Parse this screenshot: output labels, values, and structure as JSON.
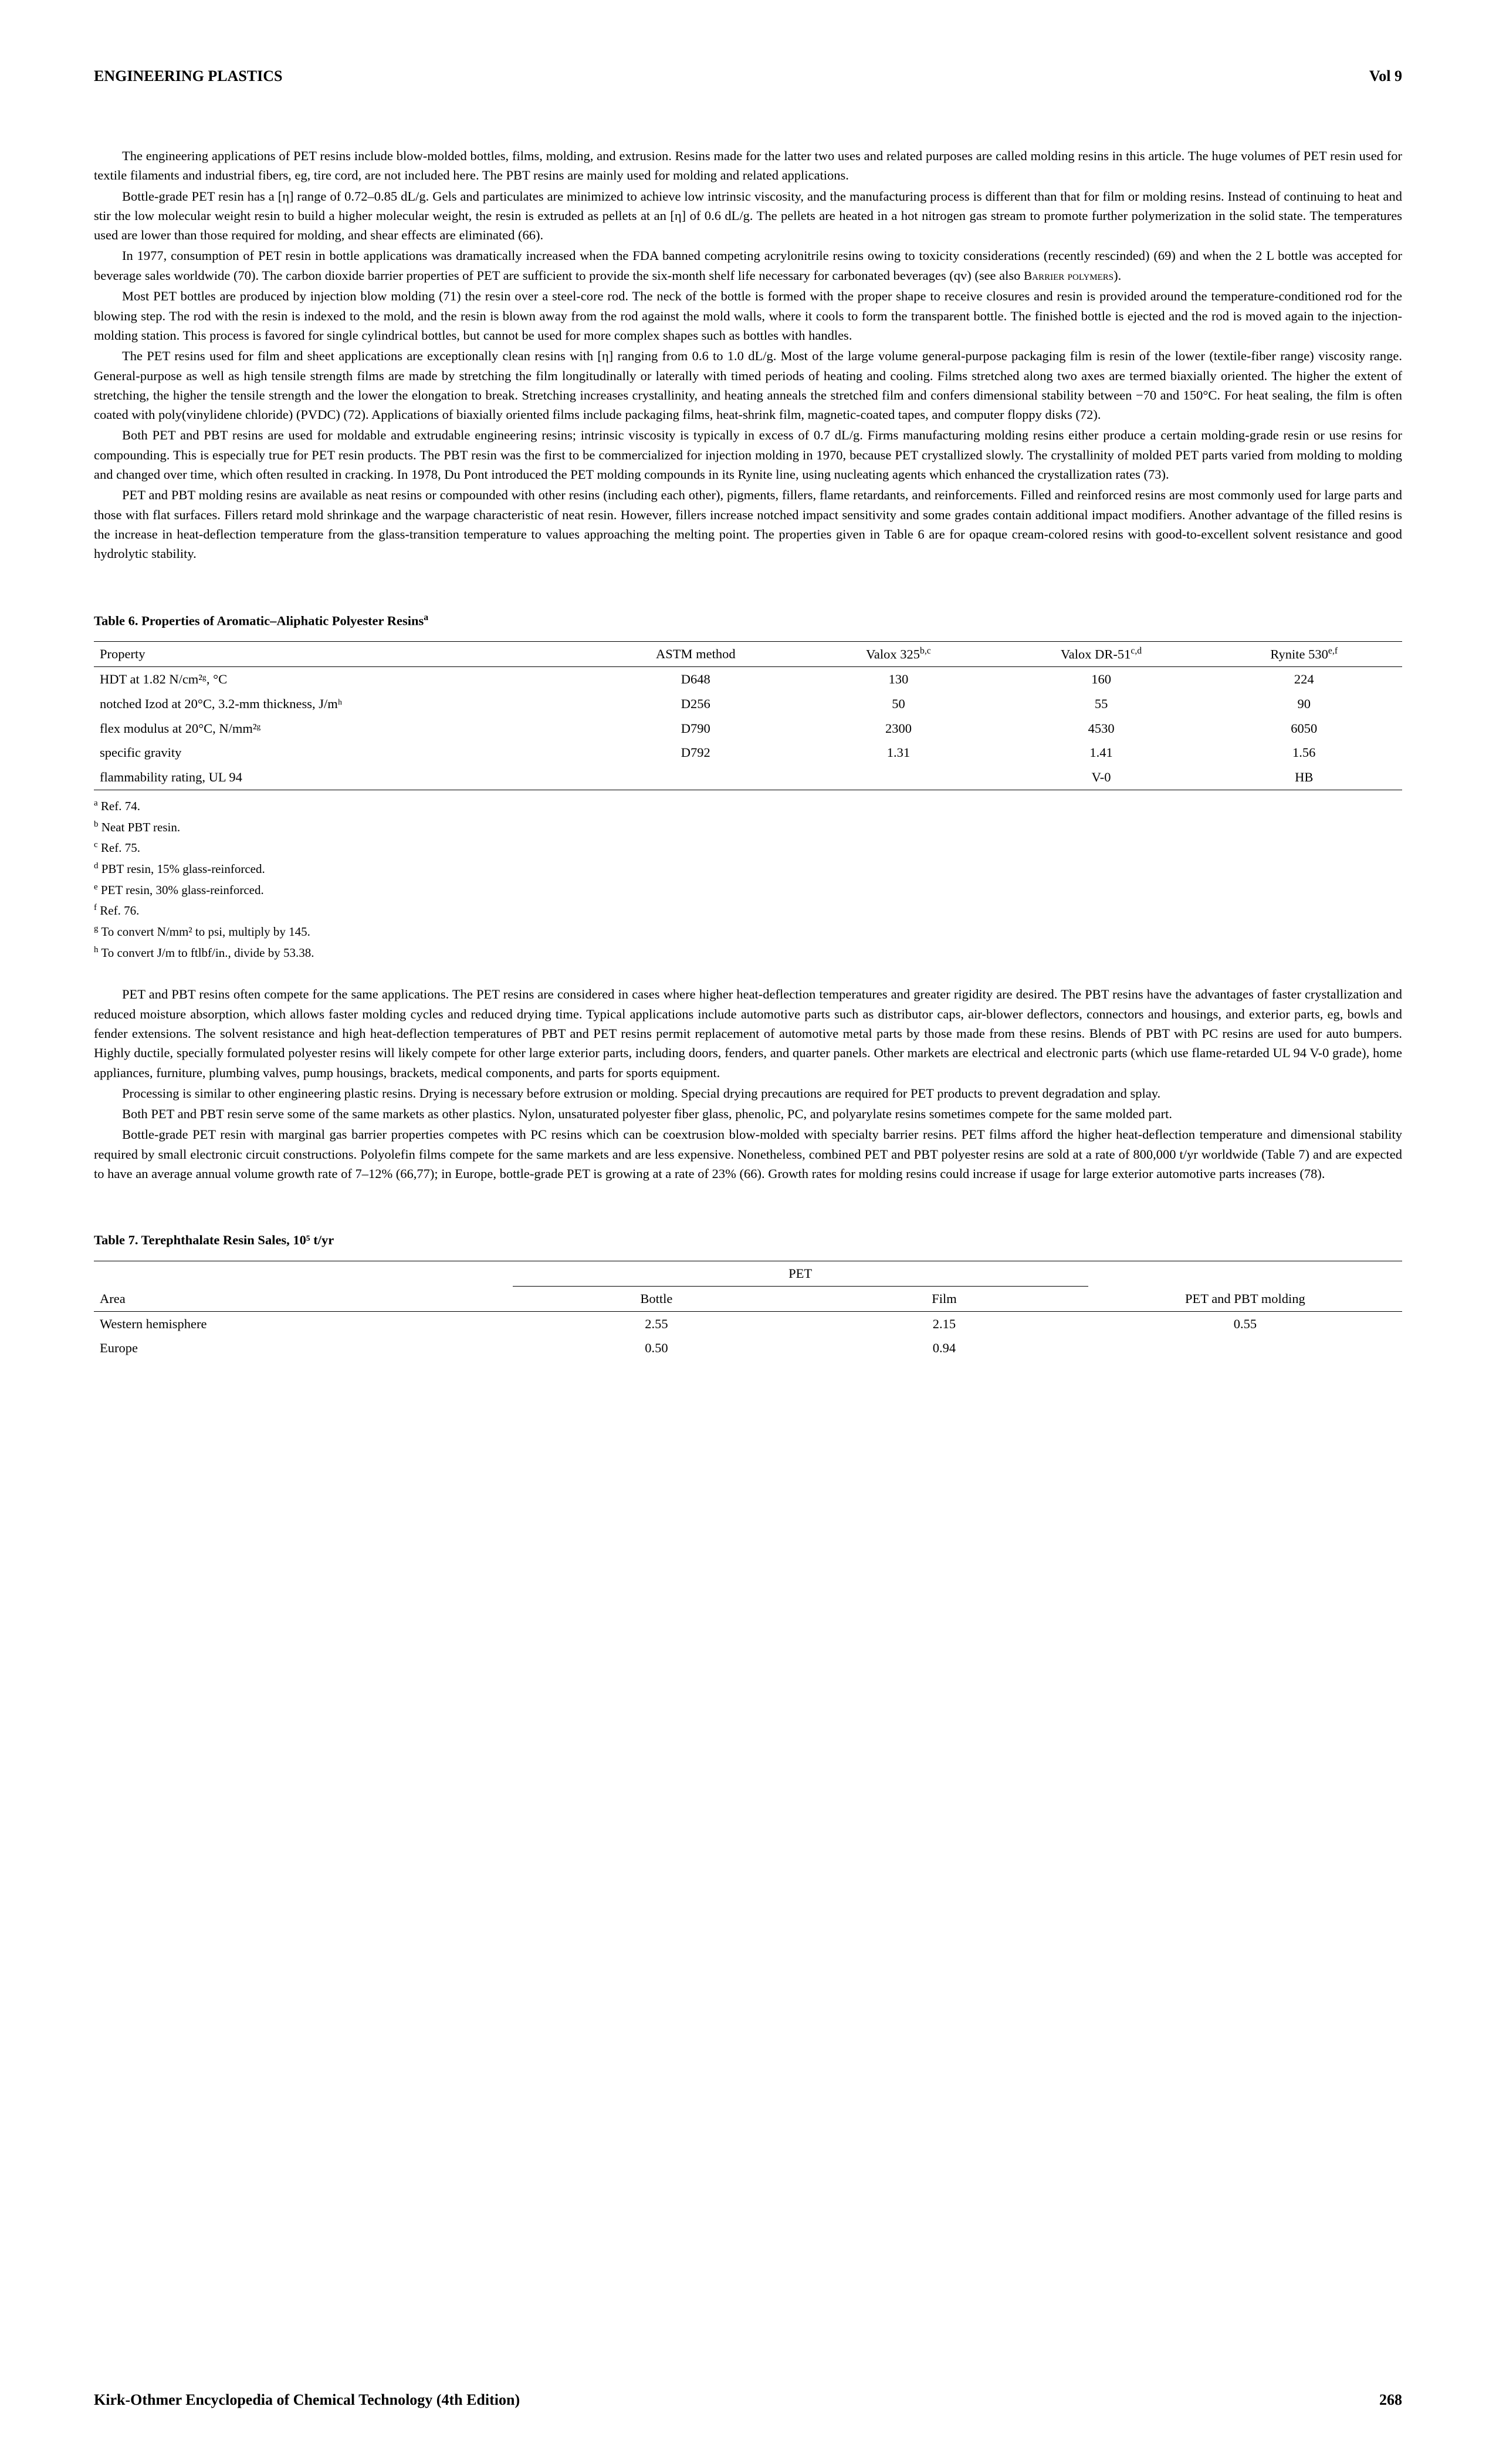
{
  "header": {
    "title": "ENGINEERING PLASTICS",
    "vol": "Vol 9"
  },
  "footer": {
    "source": "Kirk-Othmer Encyclopedia of Chemical Technology (4th Edition)",
    "page": "268"
  },
  "paras": {
    "p1": "The engineering applications of PET resins include blow-molded bottles, films, molding, and extrusion. Resins made for the latter two uses and related purposes are called molding resins in this article. The huge volumes of PET resin used for textile filaments and industrial fibers, eg, tire cord, are not included here. The PBT resins are mainly used for molding and related applications.",
    "p2": "Bottle-grade PET resin has a [η] range of 0.72–0.85 dL/g. Gels and particulates are minimized to achieve low intrinsic viscosity, and the manufacturing process is different than that for film or molding resins. Instead of continuing to heat and stir the low molecular weight resin to build a higher molecular weight, the resin is extruded as pellets at an [η] of 0.6 dL/g. The pellets are heated in a hot nitrogen gas stream to promote further polymerization in the solid state. The temperatures used are lower than those required for molding, and shear effects are eliminated (66).",
    "p3a": "In 1977, consumption of PET resin in bottle applications was dramatically increased when the FDA banned competing acrylonitrile resins owing to toxicity considerations (recently rescinded) (69) and when the 2 L bottle was accepted for beverage sales worldwide (70). The carbon dioxide barrier properties of PET are sufficient to provide the six-month shelf life necessary for carbonated beverages (qv) (see also ",
    "p3b": "Barrier polymers",
    "p3c": ").",
    "p4": "Most PET bottles are produced by injection blow molding (71) the resin over a steel-core rod. The neck of the bottle is formed with the proper shape to receive closures and resin is provided around the temperature-conditioned rod for the blowing step. The rod with the resin is indexed to the mold, and the resin is blown away from the rod against the mold walls, where it cools to form the transparent bottle. The finished bottle is ejected and the rod is moved again to the injection-molding station. This process is favored for single cylindrical bottles, but cannot be used for more complex shapes such as bottles with handles.",
    "p5": "The PET resins used for film and sheet applications are exceptionally clean resins with [η] ranging from 0.6 to 1.0 dL/g. Most of the large volume general-purpose packaging film is resin of the lower (textile-fiber range) viscosity range. General-purpose as well as high tensile strength films are made by stretching the film longitudinally or laterally with timed periods of heating and cooling. Films stretched along two axes are termed biaxially oriented. The higher the extent of stretching, the higher the tensile strength and the lower the elongation to break. Stretching increases crystallinity, and heating anneals the stretched film and confers dimensional stability between −70 and 150°C. For heat sealing, the film is often coated with poly(vinylidene chloride) (PVDC) (72). Applications of biaxially oriented films include packaging films, heat-shrink film, magnetic-coated tapes, and computer floppy disks (72).",
    "p6": "Both PET and PBT resins are used for moldable and extrudable engineering resins; intrinsic viscosity is typically in excess of 0.7 dL/g. Firms manufacturing molding resins either produce a certain molding-grade resin or use resins for compounding. This is especially true for PET resin products. The PBT resin was the first to be commercialized for injection molding in 1970, because PET crystallized slowly. The crystallinity of molded PET parts varied from molding to molding and changed over time, which often resulted in cracking. In 1978, Du Pont introduced the PET molding compounds in its Rynite line, using nucleating agents which enhanced the crystallization rates (73).",
    "p7": "PET and PBT molding resins are available as neat resins or compounded with other resins (including each other), pigments, fillers, flame retardants, and reinforcements. Filled and reinforced resins are most commonly used for large parts and those with flat surfaces. Fillers retard mold shrinkage and the warpage characteristic of neat resin. However, fillers increase notched impact sensitivity and some grades contain additional impact modifiers. Another advantage of the filled resins is the increase in heat-deflection temperature from the glass-transition temperature to values approaching the melting point. The properties given in Table 6 are for opaque cream-colored resins with good-to-excellent solvent resistance and good hydrolytic stability.",
    "p8": "PET and PBT resins often compete for the same applications. The PET resins are considered in cases where higher heat-deflection temperatures and greater rigidity are desired. The PBT resins have the advantages of faster crystallization and reduced moisture absorption, which allows faster molding cycles and reduced drying time. Typical applications include automotive parts such as distributor caps, air-blower deflectors, connectors and housings, and exterior parts, eg, bowls and fender extensions. The solvent resistance and high heat-deflection temperatures of PBT and PET resins permit replacement of automotive metal parts by those made from these resins. Blends of PBT with PC resins are used for auto bumpers. Highly ductile, specially formulated polyester resins will likely compete for other large exterior parts, including doors, fenders, and quarter panels. Other markets are electrical and electronic parts (which use flame-retarded UL 94 V-0 grade), home appliances, furniture, plumbing valves, pump housings, brackets, medical components, and parts for sports equipment.",
    "p9": "Processing is similar to other engineering plastic resins. Drying is necessary before extrusion or molding. Special drying precautions are required for PET products to prevent degradation and splay.",
    "p10": "Both PET and PBT resin serve some of the same markets as other plastics. Nylon, unsaturated polyester fiber glass, phenolic, PC, and polyarylate resins sometimes compete for the same molded part.",
    "p11": "Bottle-grade PET resin with marginal gas barrier properties competes with PC resins which can be coextrusion blow-molded with specialty barrier resins. PET films afford the higher heat-deflection temperature and dimensional stability required by small electronic circuit constructions. Polyolefin films compete for the same markets and are less expensive. Nonetheless, combined PET and PBT polyester resins are sold at a rate of 800,000 t/yr worldwide (Table 7) and are expected to have an average annual volume growth rate of 7–12% (66,77); in Europe, bottle-grade PET is growing at a rate of 23% (66). Growth rates for molding resins could increase if usage for large exterior automotive parts increases (78)."
  },
  "table6": {
    "title": "Table 6. Properties of Aromatic–Aliphatic Polyester Resins",
    "title_sup": "a",
    "cols": [
      "Property",
      "ASTM method",
      "Valox 325",
      "Valox DR-51",
      "Rynite 530"
    ],
    "col_sups": [
      "",
      "",
      "b,c",
      "c,d",
      "e,f"
    ],
    "rows": [
      {
        "label": "HDT at 1.82 N/cm²ᵍ, °C",
        "astm": "D648",
        "v1": "130",
        "v2": "160",
        "v3": "224"
      },
      {
        "label": "notched Izod at 20°C, 3.2-mm thickness, J/mʰ",
        "astm": "D256",
        "v1": "50",
        "v2": "55",
        "v3": "90"
      },
      {
        "label": "flex modulus at 20°C, N/mm²ᵍ",
        "astm": "D790",
        "v1": "2300",
        "v2": "4530",
        "v3": "6050"
      },
      {
        "label": "specific gravity",
        "astm": "D792",
        "v1": "1.31",
        "v2": "1.41",
        "v3": "1.56"
      },
      {
        "label": "flammability rating, UL 94",
        "astm": "",
        "v1": "",
        "v2": "V-0",
        "v3": "HB"
      }
    ],
    "footnotes": [
      {
        "sup": "a",
        "text": " Ref. 74."
      },
      {
        "sup": "b",
        "text": " Neat PBT resin."
      },
      {
        "sup": "c",
        "text": " Ref. 75."
      },
      {
        "sup": "d",
        "text": " PBT resin, 15% glass-reinforced."
      },
      {
        "sup": "e",
        "text": " PET resin, 30% glass-reinforced."
      },
      {
        "sup": "f",
        "text": " Ref. 76."
      },
      {
        "sup": "g",
        "text": " To convert N/mm² to psi, multiply by 145."
      },
      {
        "sup": "h",
        "text": " To convert J/m to ftlbf/in., divide by 53.38."
      }
    ]
  },
  "table7": {
    "title": "Table 7. Terephthalate Resin Sales, 10⁵ t/yr",
    "span_label": "PET",
    "cols": [
      "Area",
      "Bottle",
      "Film",
      "PET and PBT molding"
    ],
    "rows": [
      {
        "area": "Western hemisphere",
        "bottle": "2.55",
        "film": "2.15",
        "mold": "0.55"
      },
      {
        "area": "Europe",
        "bottle": "0.50",
        "film": "0.94",
        "mold": ""
      }
    ]
  }
}
